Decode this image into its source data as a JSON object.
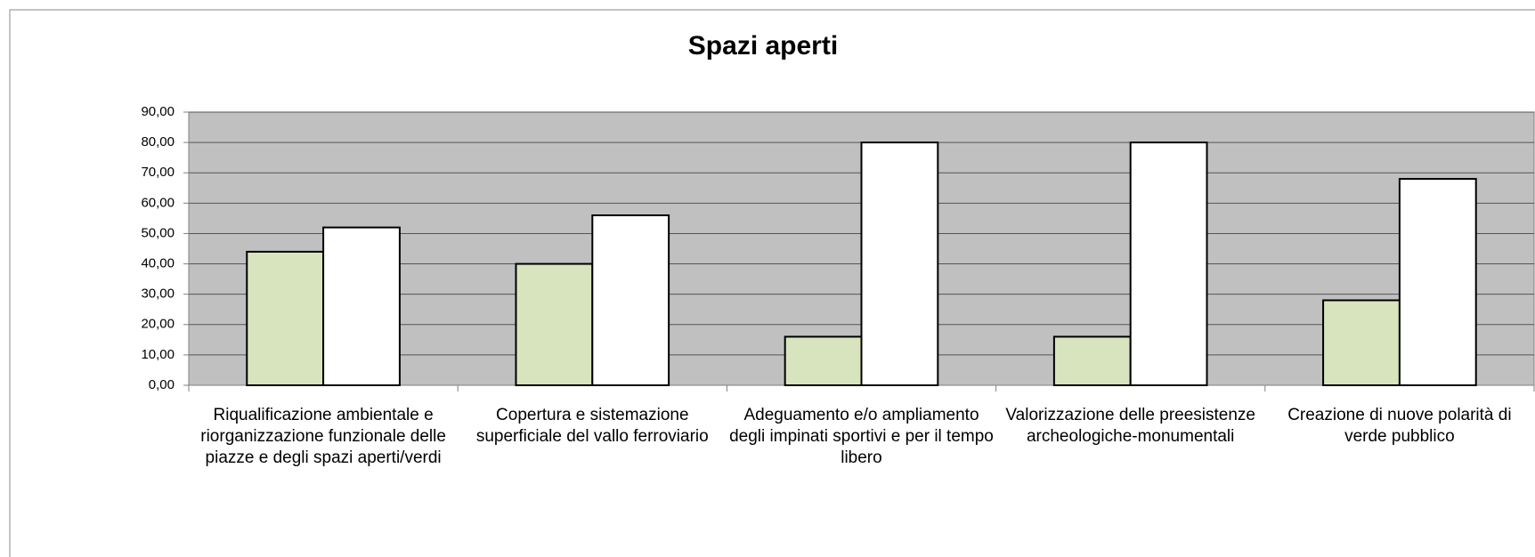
{
  "chart_data": {
    "type": "bar",
    "title": "Spazi aperti",
    "categories": [
      "Riqualificazione ambientale e riorganizzazione funzionale delle piazze e degli spazi aperti/verdi",
      "Copertura e sistemazione superficiale del vallo ferroviario",
      "Adeguamento e/o ampliamento degli impinati sportivi e per il tempo libero",
      "Valorizzazione delle preesistenze archeologiche-monumentali",
      "Creazione di nuove polarità di verde pubblico"
    ],
    "series": [
      {
        "color": "#d7e4bd",
        "values": [
          44,
          40,
          16,
          16,
          28
        ]
      },
      {
        "color": "#ffffff",
        "values": [
          52,
          56,
          80,
          80,
          68
        ]
      }
    ],
    "ylim": [
      0,
      90
    ],
    "yticks": [
      {
        "value": 0,
        "label": "0,00"
      },
      {
        "value": 10,
        "label": "10,00"
      },
      {
        "value": 20,
        "label": "20,00"
      },
      {
        "value": 30,
        "label": "30,00"
      },
      {
        "value": 40,
        "label": "40,00"
      },
      {
        "value": 50,
        "label": "50,00"
      },
      {
        "value": 60,
        "label": "60,00"
      },
      {
        "value": 70,
        "label": "70,00"
      },
      {
        "value": 80,
        "label": "80,00"
      },
      {
        "value": 90,
        "label": "90,00"
      }
    ],
    "grid": true,
    "plot_background": "#c0c0c0"
  }
}
